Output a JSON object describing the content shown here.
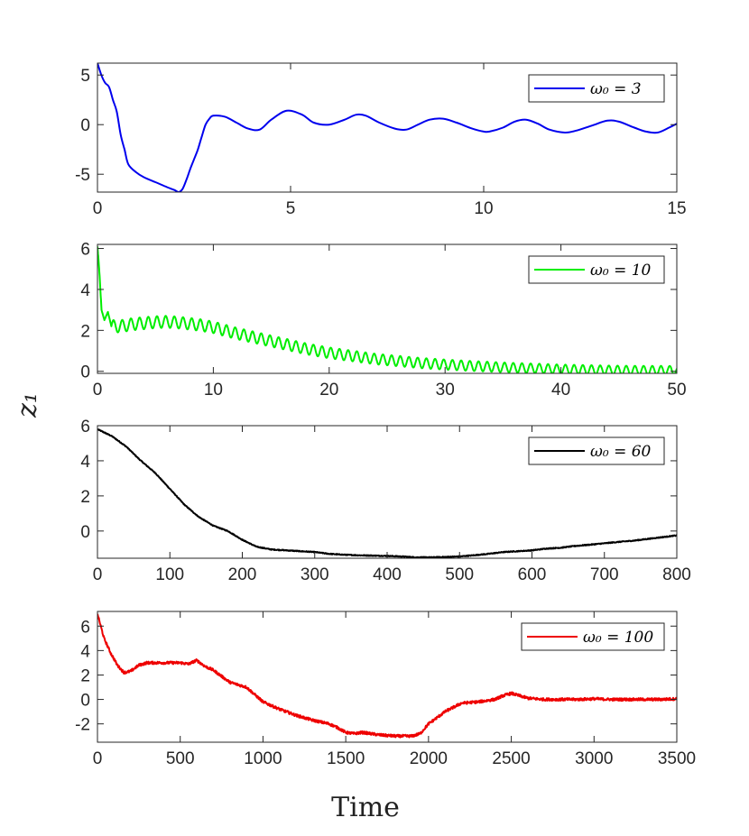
{
  "figure": {
    "ylabel": "z₁",
    "xlabel": "Time"
  },
  "chart_data": [
    {
      "type": "line",
      "legend": "ω₀ = 3",
      "legend_position": "top-right",
      "color": "#0000ee",
      "xlim": [
        0,
        15
      ],
      "ylim": [
        -6.8,
        6.2
      ],
      "xticks": [
        0,
        5,
        10,
        15
      ],
      "yticks": [
        -5,
        0,
        5
      ],
      "ytick_labels": [
        "-5",
        "0",
        "5"
      ],
      "x": [
        0,
        0.1,
        0.2,
        0.3,
        0.4,
        0.5,
        0.6,
        0.7,
        0.8,
        1.0,
        1.2,
        1.5,
        1.8,
        2.0,
        2.1,
        2.2,
        2.3,
        2.4,
        2.5,
        2.6,
        2.7,
        2.8,
        2.9,
        3.0,
        3.3,
        3.6,
        3.9,
        4.2,
        4.5,
        4.9,
        5.3,
        5.6,
        6.0,
        6.4,
        6.7,
        6.95,
        7.3,
        7.7,
        8.0,
        8.3,
        8.6,
        8.95,
        9.3,
        9.7,
        10.0,
        10.15,
        10.5,
        10.8,
        11.1,
        11.4,
        11.7,
        12.1,
        12.4,
        12.8,
        13.2,
        13.5,
        13.9,
        14.2,
        14.5,
        14.8,
        15.0
      ],
      "y": [
        6.2,
        5.0,
        4.2,
        3.8,
        2.5,
        1.3,
        -1.0,
        -2.5,
        -4.0,
        -4.8,
        -5.3,
        -5.8,
        -6.3,
        -6.6,
        -6.8,
        -6.5,
        -5.6,
        -4.5,
        -3.5,
        -2.5,
        -1.2,
        0.0,
        0.6,
        0.9,
        0.8,
        0.2,
        -0.4,
        -0.5,
        0.5,
        1.4,
        1.0,
        0.2,
        0.0,
        0.5,
        1.0,
        0.9,
        0.2,
        -0.4,
        -0.5,
        0.0,
        0.5,
        0.6,
        0.2,
        -0.4,
        -0.7,
        -0.7,
        -0.3,
        0.3,
        0.5,
        0.1,
        -0.5,
        -0.8,
        -0.6,
        -0.1,
        0.4,
        0.3,
        -0.3,
        -0.7,
        -0.8,
        -0.3,
        0.1
      ]
    },
    {
      "type": "line",
      "legend": "ω₀ = 10",
      "legend_position": "top-right",
      "color": "#00ee00",
      "xlim": [
        0,
        50
      ],
      "ylim": [
        -0.1,
        6.2
      ],
      "xticks": [
        0,
        10,
        20,
        30,
        40,
        50
      ],
      "yticks": [
        0,
        2,
        4,
        6
      ],
      "ytick_labels": [
        "0",
        "2",
        "4",
        "6"
      ],
      "x": [
        0,
        0.15,
        0.35,
        0.6,
        0.9,
        1.2,
        2,
        3,
        4,
        5,
        6,
        7,
        8,
        9,
        10,
        12,
        14,
        16,
        18,
        20,
        22,
        24,
        26,
        28,
        30,
        32,
        34,
        36,
        38,
        40,
        42,
        44,
        46,
        48,
        50
      ],
      "y": [
        6.1,
        5.0,
        3.0,
        2.5,
        2.9,
        2.2,
        2.2,
        2.3,
        2.35,
        2.4,
        2.42,
        2.38,
        2.32,
        2.25,
        2.15,
        1.85,
        1.6,
        1.35,
        1.1,
        0.9,
        0.75,
        0.6,
        0.5,
        0.4,
        0.33,
        0.27,
        0.22,
        0.17,
        0.14,
        0.1,
        0.08,
        0.06,
        0.05,
        0.05,
        0.05
      ],
      "oscillation": {
        "period": 0.75,
        "amplitude": 0.3,
        "start": 1.2
      }
    },
    {
      "type": "line",
      "legend": "ω₀ = 60",
      "legend_position": "top-right",
      "color": "#000000",
      "xlim": [
        0,
        800
      ],
      "ylim": [
        -1.55,
        6.0
      ],
      "xticks": [
        0,
        100,
        200,
        300,
        400,
        500,
        600,
        700,
        800
      ],
      "yticks": [
        0,
        2,
        4,
        6
      ],
      "ytick_labels": [
        "0",
        "2",
        "4",
        "6"
      ],
      "x": [
        0,
        20,
        40,
        60,
        80,
        100,
        120,
        140,
        160,
        180,
        200,
        220,
        240,
        260,
        280,
        300,
        320,
        340,
        360,
        380,
        400,
        420,
        440,
        460,
        480,
        500,
        520,
        540,
        560,
        580,
        600,
        620,
        640,
        660,
        680,
        700,
        720,
        740,
        760,
        780,
        800
      ],
      "y": [
        5.8,
        5.4,
        4.8,
        4.0,
        3.3,
        2.4,
        1.5,
        0.8,
        0.3,
        0.0,
        -0.5,
        -0.9,
        -1.05,
        -1.1,
        -1.15,
        -1.2,
        -1.3,
        -1.35,
        -1.38,
        -1.4,
        -1.42,
        -1.45,
        -1.5,
        -1.5,
        -1.48,
        -1.45,
        -1.38,
        -1.3,
        -1.2,
        -1.15,
        -1.1,
        -1.0,
        -0.95,
        -0.85,
        -0.78,
        -0.7,
        -0.62,
        -0.55,
        -0.45,
        -0.35,
        -0.25
      ],
      "noise": 0.05
    },
    {
      "type": "line",
      "legend": "ω₀ = 100",
      "legend_position": "top-right",
      "color": "#ee0000",
      "xlim": [
        0,
        3500
      ],
      "ylim": [
        -3.5,
        7.2
      ],
      "xticks": [
        0,
        500,
        1000,
        1500,
        2000,
        2500,
        3000,
        3500
      ],
      "yticks": [
        -2,
        0,
        2,
        4,
        6
      ],
      "ytick_labels": [
        "-2",
        "0",
        "2",
        "4",
        "6"
      ],
      "x": [
        0,
        40,
        80,
        120,
        160,
        200,
        250,
        300,
        400,
        500,
        550,
        600,
        650,
        700,
        750,
        800,
        900,
        1000,
        1100,
        1200,
        1300,
        1400,
        1450,
        1500,
        1550,
        1600,
        1700,
        1800,
        1900,
        1950,
        2000,
        2100,
        2200,
        2300,
        2400,
        2450,
        2500,
        2600,
        2700,
        2800,
        2900,
        3000,
        3100,
        3200,
        3300,
        3400,
        3500
      ],
      "y": [
        7.0,
        5.0,
        3.8,
        2.8,
        2.2,
        2.3,
        2.8,
        3.0,
        3.0,
        3.0,
        2.9,
        3.2,
        2.7,
        2.4,
        1.9,
        1.4,
        1.0,
        -0.2,
        -0.8,
        -1.3,
        -1.7,
        -2.0,
        -2.3,
        -2.7,
        -2.8,
        -2.7,
        -2.9,
        -3.0,
        -3.0,
        -2.8,
        -2.0,
        -1.0,
        -0.3,
        -0.2,
        0.0,
        0.3,
        0.5,
        0.1,
        0.0,
        0.0,
        0.0,
        0.05,
        0.0,
        0.0,
        0.0,
        0.0,
        0.05
      ],
      "noise": 0.22
    }
  ]
}
